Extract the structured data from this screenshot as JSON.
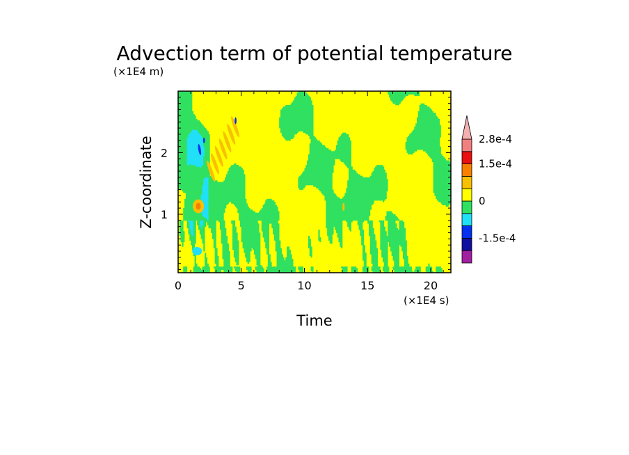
{
  "chart_data": {
    "type": "heatmap",
    "title": "Advection term of potential temperature",
    "xlabel": "Time",
    "ylabel": "Z-coordinate",
    "x_unit_label": "(×1E4 s)",
    "y_unit_label": "(×1E4 m)",
    "xlim": [
      0,
      21.6
    ],
    "ylim": [
      0.05,
      3.0
    ],
    "x_ticks": [
      "0",
      "5",
      "10",
      "15",
      "20"
    ],
    "x_tick_values": [
      0,
      5,
      10,
      15,
      20
    ],
    "y_ticks": [
      "1",
      "2"
    ],
    "y_tick_values": [
      1,
      2
    ],
    "colorbar": {
      "labels": [
        "2.8e-4",
        "1.5e-4",
        "0",
        "-1.5e-4"
      ],
      "label_levels": [
        0.00028,
        0.00015,
        0,
        -0.00015
      ],
      "colors": [
        "#a0209f",
        "#1010a0",
        "#0030f0",
        "#20e0f8",
        "#30e060",
        "#ffff00",
        "#f8c000",
        "#f88000",
        "#e81010",
        "#f08080",
        "#f4b0b0"
      ],
      "extend": "max"
    },
    "regions": [
      {
        "desc": "negative band early times",
        "x": [
          0.5,
          2.5
        ],
        "y": [
          0.4,
          3.0
        ],
        "value": -0.00012
      },
      {
        "desc": "positive blob",
        "x": [
          1.2,
          2.2
        ],
        "y": [
          1.05,
          1.25
        ],
        "value": 0.00013
      },
      {
        "desc": "slanted positive stripes",
        "x": [
          2.5,
          4.8
        ],
        "y": [
          1.6,
          2.6
        ],
        "value": 0.0001
      }
    ],
    "grid": false,
    "legend": "right"
  }
}
